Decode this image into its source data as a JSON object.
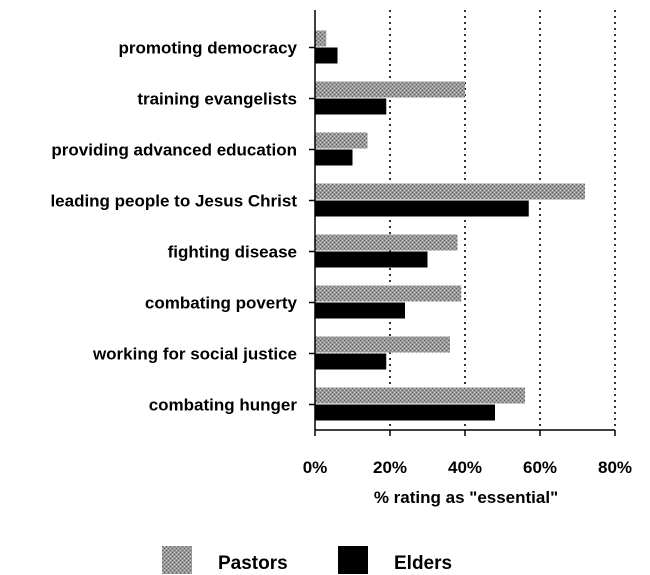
{
  "chart_data": {
    "type": "bar",
    "orientation": "horizontal",
    "categories": [
      "promoting democracy",
      "training evangelists",
      "providing advanced education",
      "leading people to Jesus Christ",
      "fighting disease",
      "combating poverty",
      "working for social justice",
      "combating hunger"
    ],
    "series": [
      {
        "name": "Pastors",
        "values": [
          3,
          40,
          14,
          72,
          38,
          39,
          36,
          56
        ],
        "color": "#8a8a8a"
      },
      {
        "name": "Elders",
        "values": [
          6,
          19,
          10,
          57,
          30,
          24,
          19,
          48
        ],
        "color": "#000000"
      }
    ],
    "xlabel": "% rating as \"essential\"",
    "ylabel": "",
    "xlim": [
      0,
      80
    ],
    "xticks": [
      0,
      20,
      40,
      60,
      80
    ],
    "tick_labels": [
      "0%",
      "20%",
      "40%",
      "60%",
      "80%"
    ],
    "grid": "vertical dotted",
    "legend_position": "bottom"
  }
}
